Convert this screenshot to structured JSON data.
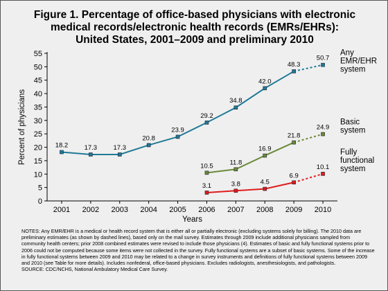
{
  "figure": {
    "title_lines": [
      "Figure 1. Percentage of office-based physicians with electronic",
      "medical records/electronic health records (EMRs/EHRs):",
      "United States, 2001–2009 and preliminary 2010"
    ]
  },
  "chart_data": {
    "type": "line",
    "x": [
      "2001",
      "2002",
      "2003",
      "2004",
      "2005",
      "2006",
      "2007",
      "2008",
      "2009",
      "2010"
    ],
    "xlabel": "Years",
    "ylabel": "Percent of physicians",
    "ylim": [
      0,
      55
    ],
    "yticks": [
      0,
      5,
      10,
      15,
      20,
      25,
      30,
      35,
      40,
      45,
      50,
      55
    ],
    "grid": false,
    "legend": "direct labels at right end of each series",
    "preliminary_segment": "2009-2010 shown as dashed line",
    "series": [
      {
        "name_lines": [
          "Any",
          "EMR/EHR",
          "system"
        ],
        "color": "#1f7a96",
        "values": [
          18.2,
          17.3,
          17.3,
          20.8,
          23.9,
          29.2,
          34.8,
          42.0,
          48.3,
          50.7
        ],
        "labels": [
          "18.2",
          "17.3",
          "17.3",
          "20.8",
          "23.9",
          "29.2",
          "34.8",
          "42.0",
          "48.3",
          "50.7"
        ]
      },
      {
        "name_lines": [
          "Basic",
          "system"
        ],
        "color": "#6a8a38",
        "values": [
          null,
          null,
          null,
          null,
          null,
          10.5,
          11.8,
          16.9,
          21.8,
          24.9
        ],
        "labels": [
          null,
          null,
          null,
          null,
          null,
          "10.5",
          "11.8",
          "16.9",
          "21.8",
          "24.9"
        ]
      },
      {
        "name_lines": [
          "Fully",
          "functional",
          "system"
        ],
        "color": "#e01b1b",
        "values": [
          null,
          null,
          null,
          null,
          null,
          3.1,
          3.8,
          4.5,
          6.9,
          10.1
        ],
        "labels": [
          null,
          null,
          null,
          null,
          null,
          "3.1",
          "3.8",
          "4.5",
          "6.9",
          "10.1"
        ]
      }
    ]
  },
  "notes": {
    "text": "NOTES: Any EMR/EHR is a medical or health record system that is either all or partially electronic (excluding systems solely for billing). The 2010 data are preliminary estimates (as shown by dashed lines), based only on the mail survey. Estimates through 2009 include additional physicians sampled from community health centers; prior 2008 combined estimates were revised to include those physicians (4). Estimates of basic and fully functional systems prior to 2006 could not be computed because some items were not collected in the survey. Fully functional systems are a subset of basic systems. Some of the increase in fully functional systems between 2009 and 2010 may be related to a change in survey instruments and definitions of fully functional systems between 2009 and 2010 (see Table for more details). Includes nonfederal, office-based physicians. Excludes radiologists, anesthesiologists, and pathologists.",
    "source": "SOURCE: CDC/NCHS, National Ambulatory Medical Care Survey."
  }
}
